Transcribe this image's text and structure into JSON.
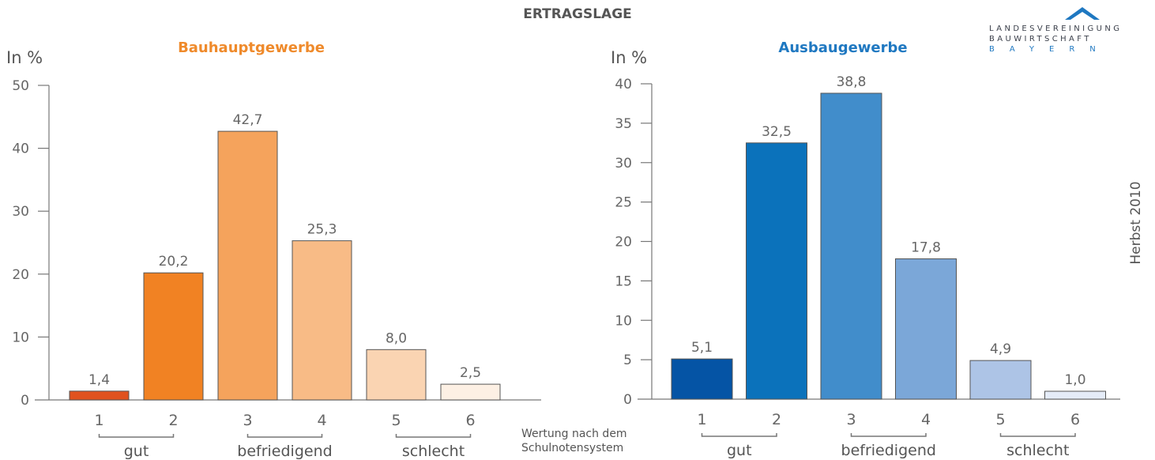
{
  "page": {
    "title": "ERTRAGSLAGE",
    "side_label": "Herbst 2010",
    "scale_note": [
      "Wertung nach dem",
      "Schulnotensystem"
    ],
    "logo": {
      "lines": [
        "LANDESVEREINIGUNG",
        "BAUWIRTSCHAFT",
        "BAYERN"
      ],
      "colors": {
        "dark": "#3a3f4a",
        "accent": "#1f78c1"
      }
    }
  },
  "chart_data": [
    {
      "type": "bar",
      "title": "Bauhauptgewerbe",
      "title_color": "#ef8a2b",
      "ylabel": "In %",
      "ylim": [
        0,
        50
      ],
      "yticks": [
        0,
        10,
        20,
        30,
        40,
        50
      ],
      "categories": [
        "1",
        "2",
        "3",
        "4",
        "5",
        "6"
      ],
      "values": [
        1.4,
        20.2,
        42.7,
        25.3,
        8.0,
        2.5
      ],
      "value_labels": [
        "1,4",
        "20,2",
        "42,7",
        "25,3",
        "8,0",
        "2,5"
      ],
      "colors": [
        "#e0521f",
        "#f18223",
        "#f5a35c",
        "#f8bb86",
        "#fad4b2",
        "#fdf0e4"
      ],
      "groups": [
        {
          "label": "gut",
          "from": 0,
          "to": 1
        },
        {
          "label": "befriedigend",
          "from": 2,
          "to": 3
        },
        {
          "label": "schlecht",
          "from": 4,
          "to": 5
        }
      ],
      "grid": false
    },
    {
      "type": "bar",
      "title": "Ausbaugewerbe",
      "title_color": "#1f78c1",
      "ylabel": "In %",
      "ylim": [
        0,
        40
      ],
      "yticks": [
        0,
        5,
        10,
        15,
        20,
        25,
        30,
        35,
        40
      ],
      "categories": [
        "1",
        "2",
        "3",
        "4",
        "5",
        "6"
      ],
      "values": [
        5.1,
        32.5,
        38.8,
        17.8,
        4.9,
        1.0
      ],
      "value_labels": [
        "5,1",
        "32,5",
        "38,8",
        "17,8",
        "4,9",
        "1,0"
      ],
      "colors": [
        "#0554a5",
        "#0b72bb",
        "#418dcb",
        "#7ba7d8",
        "#adc4e6",
        "#e5ecf8"
      ],
      "groups": [
        {
          "label": "gut",
          "from": 0,
          "to": 1
        },
        {
          "label": "befriedigend",
          "from": 2,
          "to": 3
        },
        {
          "label": "schlecht",
          "from": 4,
          "to": 5
        }
      ],
      "grid": false
    }
  ]
}
